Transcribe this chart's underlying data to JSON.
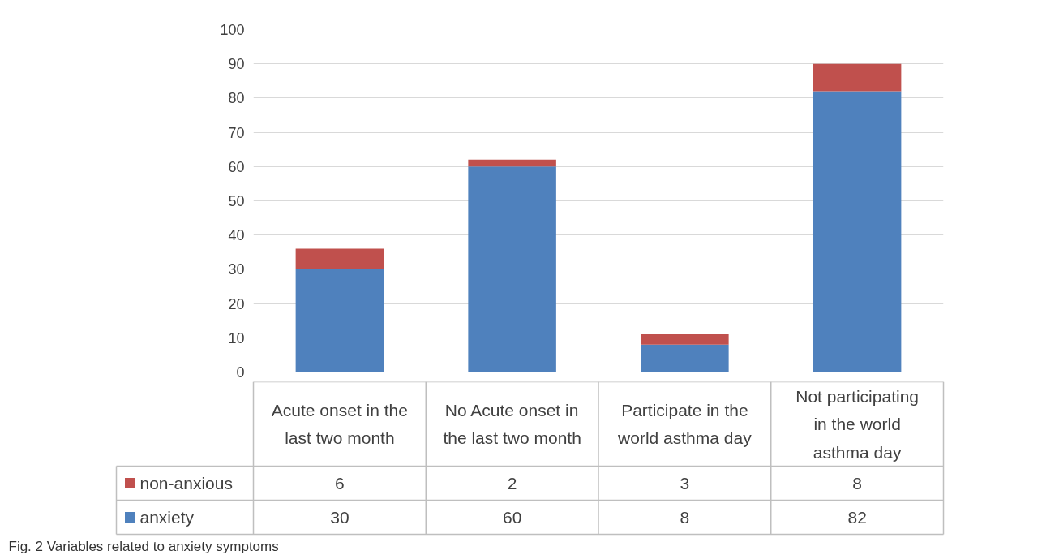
{
  "chart_data": {
    "type": "bar",
    "stacked": true,
    "data_labels": true,
    "grid": "y",
    "legend": "bottom left",
    "categories": [
      "Acute onset in the last two month",
      "No Acute onset in the last two month",
      "Participate in the world asthma day",
      "Not participating in the world asthma day"
    ],
    "series": [
      {
        "name": "anxiety",
        "color": "#4f81bd",
        "values": [
          30,
          60,
          8,
          82
        ]
      },
      {
        "name": "non-anxious",
        "color": "#c0504d",
        "values": [
          6,
          2,
          3,
          8
        ]
      }
    ],
    "ylim": [
      0,
      100
    ],
    "yticks": [
      0,
      10,
      20,
      30,
      40,
      50,
      60,
      70,
      80,
      90,
      100
    ],
    "annotations": [
      "Fig. 2  Variables related to anxiety symptoms"
    ]
  }
}
